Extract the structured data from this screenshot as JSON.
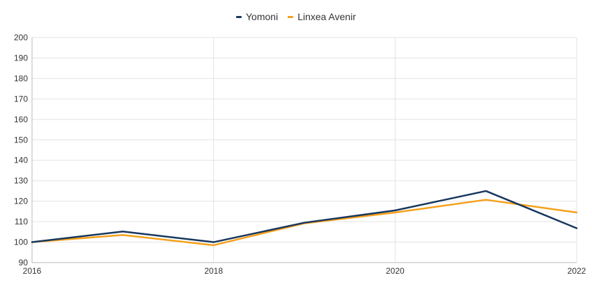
{
  "chart_data": {
    "type": "line",
    "title": "",
    "xlabel": "",
    "ylabel": "",
    "x": [
      2016,
      2017,
      2018,
      2019,
      2020,
      2021,
      2022
    ],
    "x_ticks": [
      "2016",
      "2018",
      "2020",
      "2022"
    ],
    "xlim": [
      2016,
      2022
    ],
    "ylim": [
      90,
      200
    ],
    "y_ticks": [
      "90",
      "100",
      "110",
      "120",
      "130",
      "140",
      "150",
      "160",
      "170",
      "180",
      "190",
      "200"
    ],
    "grid": true,
    "legend_position": "top-center",
    "series": [
      {
        "name": "Yomoni",
        "color": "#17375e",
        "values": [
          100,
          105.2,
          100,
          109.5,
          115.5,
          125,
          106.8
        ]
      },
      {
        "name": "Linxea Avenir",
        "color": "#f5a01a",
        "values": [
          100,
          103.5,
          98.5,
          109.2,
          114.5,
          120.7,
          114.5
        ]
      }
    ]
  }
}
